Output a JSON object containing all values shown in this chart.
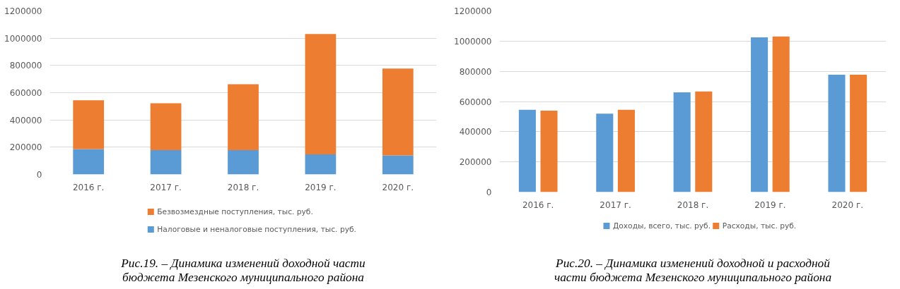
{
  "chart_data": [
    {
      "type": "bar",
      "stacked": true,
      "categories": [
        "2016 г.",
        "2017 г.",
        "2018 г.",
        "2019 г.",
        "2020 г."
      ],
      "series": [
        {
          "name": "Налоговые и неналоговые поступления, тыс. руб.",
          "color": "#5b9bd5",
          "values": [
            186000,
            179000,
            179000,
            147000,
            140000
          ]
        },
        {
          "name": "Безвозмездные поступления, тыс. руб.",
          "color": "#ed7d31",
          "values": [
            359000,
            343000,
            483000,
            883000,
            637000
          ]
        }
      ],
      "ylim": [
        0,
        1200000
      ],
      "yticks": [
        0,
        200000,
        400000,
        600000,
        800000,
        1000000,
        1200000
      ],
      "grid": "y",
      "legend": "bottom",
      "annotations": [
        "Рис.19. – Динамика изменений доходной части\nбюджета Мезенского муниципального района"
      ]
    },
    {
      "type": "bar",
      "categories": [
        "2016 г.",
        "2017 г.",
        "2018 г.",
        "2019 г.",
        "2020 г."
      ],
      "series": [
        {
          "name": "Доходы, всего, тыс. руб.",
          "color": "#5b9bd5",
          "values": [
            545000,
            520000,
            661000,
            1025000,
            777000
          ]
        },
        {
          "name": "Расходы, тыс. руб.",
          "color": "#ed7d31",
          "values": [
            539000,
            545000,
            667000,
            1031000,
            777000
          ]
        }
      ],
      "ylim": [
        0,
        1200000
      ],
      "yticks": [
        0,
        200000,
        400000,
        600000,
        800000,
        1000000,
        1200000
      ],
      "grid": "y",
      "legend": "bottom",
      "annotations": [
        "Рис.20. – Динамика изменений доходной и расходной\nчасти бюджета Мезенского муниципального района"
      ]
    }
  ]
}
